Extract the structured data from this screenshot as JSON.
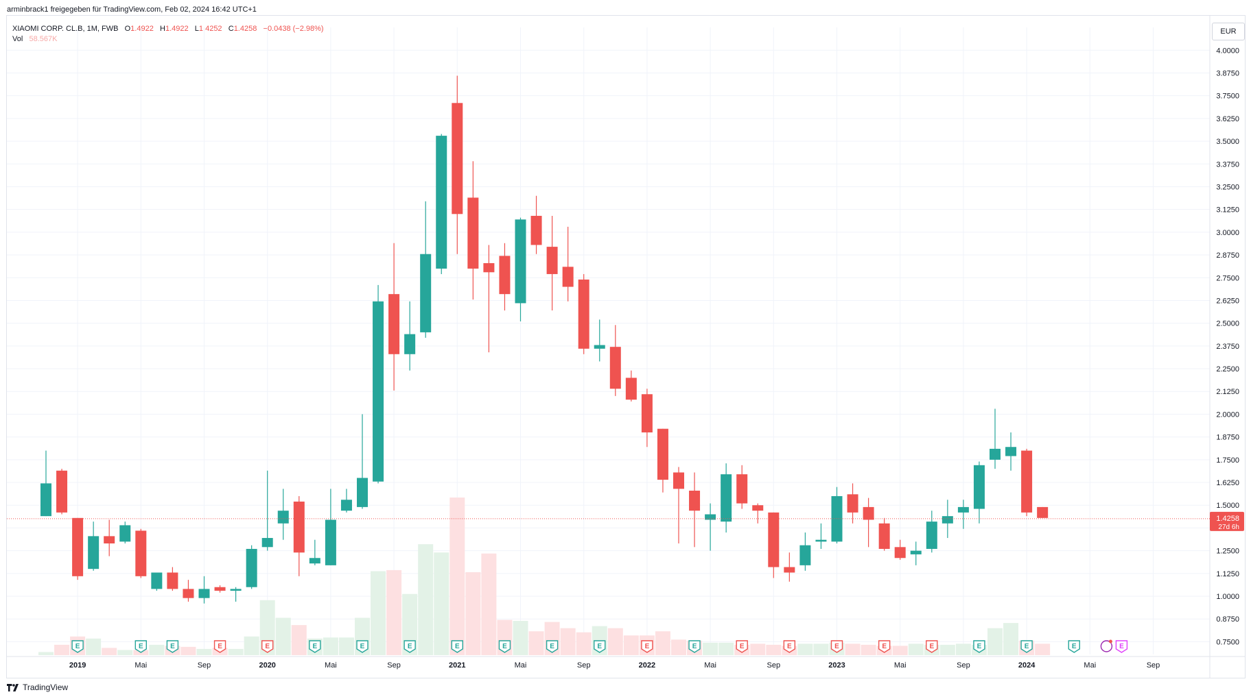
{
  "header": {
    "shared_by": "arminbrack1 freigegeben für TradingView.com, Feb 02, 2024 16:42 UTC+1"
  },
  "legend": {
    "symbol": "XIAOMI CORP. CL.B, 1M, FWB",
    "o_label": "O",
    "o_value": "1.4922",
    "h_label": "H",
    "h_value": "1.4922",
    "l_label": "L",
    "l_value": "1.4252",
    "c_label": "C",
    "c_value": "1.4258",
    "change": "−0.0438 (−2.98%)",
    "vol_label": "Vol",
    "vol_value": "58.567K"
  },
  "currency_button": "EUR",
  "price_tag": {
    "price": "1.4258",
    "countdown": "27d 6h"
  },
  "footer": {
    "brand": "TradingView"
  },
  "colors": {
    "up": "#26a69a",
    "down": "#ef5350",
    "vol_up": "#e3f2e7",
    "vol_down": "#fde0e1",
    "grid": "#f0f3fa",
    "text": "#131722"
  },
  "chart_data": {
    "type": "candlestick",
    "interval": "1M",
    "ylim": [
      0.68,
      4.05
    ],
    "y_ticks": [
      "4.0000",
      "3.8750",
      "3.7500",
      "3.6250",
      "3.5000",
      "3.3750",
      "3.2500",
      "3.1250",
      "3.0000",
      "2.8750",
      "2.7500",
      "2.6250",
      "2.5000",
      "2.3750",
      "2.2500",
      "2.1250",
      "2.0000",
      "1.8750",
      "1.7500",
      "1.6250",
      "1.5000",
      "1.3750",
      "1.2500",
      "1.1250",
      "1.0000",
      "0.8750",
      "0.7500"
    ],
    "x_ticks": [
      {
        "label": "2019",
        "bold": true,
        "idx": 2
      },
      {
        "label": "Mai",
        "bold": false,
        "idx": 6
      },
      {
        "label": "Sep",
        "bold": false,
        "idx": 10
      },
      {
        "label": "2020",
        "bold": true,
        "idx": 14
      },
      {
        "label": "Mai",
        "bold": false,
        "idx": 18
      },
      {
        "label": "Sep",
        "bold": false,
        "idx": 22
      },
      {
        "label": "2021",
        "bold": true,
        "idx": 26
      },
      {
        "label": "Mai",
        "bold": false,
        "idx": 30
      },
      {
        "label": "Sep",
        "bold": false,
        "idx": 34
      },
      {
        "label": "2022",
        "bold": true,
        "idx": 38
      },
      {
        "label": "Mai",
        "bold": false,
        "idx": 42
      },
      {
        "label": "Sep",
        "bold": false,
        "idx": 46
      },
      {
        "label": "2023",
        "bold": true,
        "idx": 50
      },
      {
        "label": "Mai",
        "bold": false,
        "idx": 54
      },
      {
        "label": "Sep",
        "bold": false,
        "idx": 58
      },
      {
        "label": "2024",
        "bold": true,
        "idx": 62
      },
      {
        "label": "Mai",
        "bold": false,
        "idx": 66
      },
      {
        "label": "Sep",
        "bold": false,
        "idx": 70
      }
    ],
    "candles": [
      {
        "o": 1.44,
        "h": 1.8,
        "l": 1.44,
        "c": 1.62,
        "v": 0.03
      },
      {
        "o": 1.69,
        "h": 1.7,
        "l": 1.45,
        "c": 1.46,
        "v": 0.1
      },
      {
        "o": 1.43,
        "h": 1.43,
        "l": 1.09,
        "c": 1.11,
        "v": 0.18
      },
      {
        "o": 1.15,
        "h": 1.41,
        "l": 1.14,
        "c": 1.33,
        "v": 0.16
      },
      {
        "o": 1.33,
        "h": 1.42,
        "l": 1.22,
        "c": 1.29,
        "v": 0.07
      },
      {
        "o": 1.3,
        "h": 1.41,
        "l": 1.29,
        "c": 1.39,
        "v": 0.05
      },
      {
        "o": 1.36,
        "h": 1.37,
        "l": 1.1,
        "c": 1.11,
        "v": 0.05
      },
      {
        "o": 1.04,
        "h": 1.13,
        "l": 1.03,
        "c": 1.13,
        "v": 0.1
      },
      {
        "o": 1.13,
        "h": 1.16,
        "l": 1.03,
        "c": 1.04,
        "v": 0.09
      },
      {
        "o": 1.04,
        "h": 1.09,
        "l": 0.97,
        "c": 0.99,
        "v": 0.08
      },
      {
        "o": 0.99,
        "h": 1.11,
        "l": 0.96,
        "c": 1.04,
        "v": 0.06
      },
      {
        "o": 1.05,
        "h": 1.06,
        "l": 1.02,
        "c": 1.03,
        "v": 0.07
      },
      {
        "o": 1.03,
        "h": 1.05,
        "l": 0.97,
        "c": 1.04,
        "v": 0.06
      },
      {
        "o": 1.05,
        "h": 1.28,
        "l": 1.04,
        "c": 1.26,
        "v": 0.18
      },
      {
        "o": 1.27,
        "h": 1.69,
        "l": 1.25,
        "c": 1.32,
        "v": 0.53
      },
      {
        "o": 1.4,
        "h": 1.59,
        "l": 1.31,
        "c": 1.47,
        "v": 0.36
      },
      {
        "o": 1.52,
        "h": 1.55,
        "l": 1.11,
        "c": 1.24,
        "v": 0.29
      },
      {
        "o": 1.18,
        "h": 1.31,
        "l": 1.17,
        "c": 1.21,
        "v": 0.16
      },
      {
        "o": 1.17,
        "h": 1.59,
        "l": 1.17,
        "c": 1.42,
        "v": 0.17
      },
      {
        "o": 1.47,
        "h": 1.59,
        "l": 1.46,
        "c": 1.53,
        "v": 0.17
      },
      {
        "o": 1.49,
        "h": 2.0,
        "l": 1.48,
        "c": 1.65,
        "v": 0.36
      },
      {
        "o": 1.63,
        "h": 2.71,
        "l": 1.62,
        "c": 2.62,
        "v": 0.81
      },
      {
        "o": 2.66,
        "h": 2.94,
        "l": 2.13,
        "c": 2.33,
        "v": 0.82
      },
      {
        "o": 2.33,
        "h": 2.62,
        "l": 2.24,
        "c": 2.44,
        "v": 0.59
      },
      {
        "o": 2.45,
        "h": 3.17,
        "l": 2.42,
        "c": 2.88,
        "v": 1.07
      },
      {
        "o": 2.8,
        "h": 3.54,
        "l": 2.77,
        "c": 3.53,
        "v": 0.99
      },
      {
        "o": 3.71,
        "h": 3.86,
        "l": 2.88,
        "c": 3.1,
        "v": 1.52
      },
      {
        "o": 3.19,
        "h": 3.39,
        "l": 2.63,
        "c": 2.8,
        "v": 0.8
      },
      {
        "o": 2.83,
        "h": 2.93,
        "l": 2.34,
        "c": 2.78,
        "v": 0.98
      },
      {
        "o": 2.87,
        "h": 2.94,
        "l": 2.57,
        "c": 2.66,
        "v": 0.34
      },
      {
        "o": 2.61,
        "h": 3.08,
        "l": 2.51,
        "c": 3.07,
        "v": 0.33
      },
      {
        "o": 3.09,
        "h": 3.2,
        "l": 2.88,
        "c": 2.93,
        "v": 0.23
      },
      {
        "o": 2.92,
        "h": 3.09,
        "l": 2.57,
        "c": 2.77,
        "v": 0.32
      },
      {
        "o": 2.81,
        "h": 3.03,
        "l": 2.62,
        "c": 2.7,
        "v": 0.26
      },
      {
        "o": 2.74,
        "h": 2.77,
        "l": 2.33,
        "c": 2.36,
        "v": 0.22
      },
      {
        "o": 2.36,
        "h": 2.52,
        "l": 2.29,
        "c": 2.38,
        "v": 0.28
      },
      {
        "o": 2.37,
        "h": 2.49,
        "l": 2.1,
        "c": 2.14,
        "v": 0.26
      },
      {
        "o": 2.2,
        "h": 2.24,
        "l": 2.07,
        "c": 2.08,
        "v": 0.19
      },
      {
        "o": 2.11,
        "h": 2.14,
        "l": 1.82,
        "c": 1.9,
        "v": 0.19
      },
      {
        "o": 1.92,
        "h": 1.92,
        "l": 1.57,
        "c": 1.64,
        "v": 0.23
      },
      {
        "o": 1.68,
        "h": 1.71,
        "l": 1.29,
        "c": 1.59,
        "v": 0.15
      },
      {
        "o": 1.58,
        "h": 1.68,
        "l": 1.27,
        "c": 1.47,
        "v": 0.14
      },
      {
        "o": 1.42,
        "h": 1.51,
        "l": 1.25,
        "c": 1.45,
        "v": 0.12
      },
      {
        "o": 1.41,
        "h": 1.73,
        "l": 1.35,
        "c": 1.67,
        "v": 0.12
      },
      {
        "o": 1.67,
        "h": 1.72,
        "l": 1.48,
        "c": 1.51,
        "v": 0.1
      },
      {
        "o": 1.5,
        "h": 1.51,
        "l": 1.4,
        "c": 1.47,
        "v": 0.11
      },
      {
        "o": 1.46,
        "h": 1.46,
        "l": 1.1,
        "c": 1.16,
        "v": 0.1
      },
      {
        "o": 1.16,
        "h": 1.24,
        "l": 1.08,
        "c": 1.13,
        "v": 0.09
      },
      {
        "o": 1.17,
        "h": 1.35,
        "l": 1.14,
        "c": 1.28,
        "v": 0.11
      },
      {
        "o": 1.3,
        "h": 1.4,
        "l": 1.26,
        "c": 1.31,
        "v": 0.11
      },
      {
        "o": 1.3,
        "h": 1.6,
        "l": 1.29,
        "c": 1.55,
        "v": 0.12
      },
      {
        "o": 1.56,
        "h": 1.62,
        "l": 1.4,
        "c": 1.46,
        "v": 0.11
      },
      {
        "o": 1.49,
        "h": 1.54,
        "l": 1.27,
        "c": 1.42,
        "v": 0.1
      },
      {
        "o": 1.4,
        "h": 1.43,
        "l": 1.25,
        "c": 1.26,
        "v": 0.09
      },
      {
        "o": 1.27,
        "h": 1.31,
        "l": 1.2,
        "c": 1.21,
        "v": 0.09
      },
      {
        "o": 1.23,
        "h": 1.3,
        "l": 1.17,
        "c": 1.25,
        "v": 0.11
      },
      {
        "o": 1.26,
        "h": 1.47,
        "l": 1.24,
        "c": 1.41,
        "v": 0.1
      },
      {
        "o": 1.4,
        "h": 1.53,
        "l": 1.32,
        "c": 1.44,
        "v": 0.1
      },
      {
        "o": 1.46,
        "h": 1.53,
        "l": 1.37,
        "c": 1.49,
        "v": 0.11
      },
      {
        "o": 1.48,
        "h": 1.74,
        "l": 1.4,
        "c": 1.72,
        "v": 0.1
      },
      {
        "o": 1.75,
        "h": 2.03,
        "l": 1.7,
        "c": 1.81,
        "v": 0.26
      },
      {
        "o": 1.77,
        "h": 1.9,
        "l": 1.69,
        "c": 1.82,
        "v": 0.31
      },
      {
        "o": 1.8,
        "h": 1.81,
        "l": 1.44,
        "c": 1.46,
        "v": 0.14
      },
      {
        "o": 1.49,
        "h": 1.49,
        "l": 1.43,
        "c": 1.43,
        "v": 0.11
      }
    ],
    "earnings_markers": [
      {
        "idx": 2,
        "type": "up"
      },
      {
        "idx": 6,
        "type": "up"
      },
      {
        "idx": 8,
        "type": "up"
      },
      {
        "idx": 11,
        "type": "down"
      },
      {
        "idx": 14,
        "type": "down"
      },
      {
        "idx": 17,
        "type": "up"
      },
      {
        "idx": 20,
        "type": "up"
      },
      {
        "idx": 23,
        "type": "up"
      },
      {
        "idx": 26,
        "type": "up"
      },
      {
        "idx": 29,
        "type": "up"
      },
      {
        "idx": 32,
        "type": "up"
      },
      {
        "idx": 35,
        "type": "up"
      },
      {
        "idx": 38,
        "type": "down"
      },
      {
        "idx": 41,
        "type": "up"
      },
      {
        "idx": 44,
        "type": "down"
      },
      {
        "idx": 47,
        "type": "down"
      },
      {
        "idx": 50,
        "type": "down"
      },
      {
        "idx": 53,
        "type": "down"
      },
      {
        "idx": 56,
        "type": "down"
      },
      {
        "idx": 59,
        "type": "up"
      },
      {
        "idx": 62,
        "type": "up"
      },
      {
        "idx": 65,
        "type": "up"
      },
      {
        "idx": 68,
        "type": "future"
      }
    ],
    "current_price": 1.4258
  }
}
